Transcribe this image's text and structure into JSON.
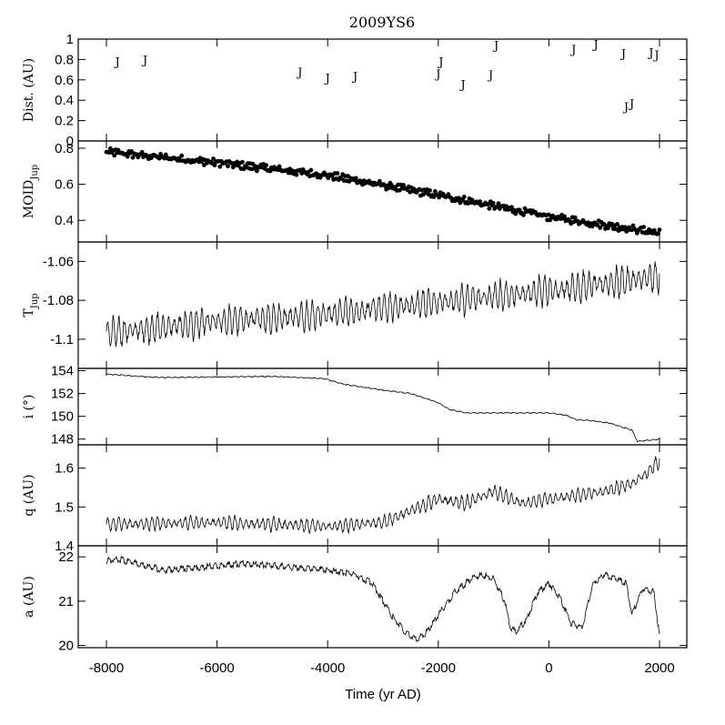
{
  "chart_data": {
    "type": "line",
    "title": "2009YS6",
    "xlabel": "Time (yr AD)",
    "xlim": [
      -8000,
      2000
    ],
    "xticks": [
      -8000,
      -6000,
      -4000,
      -2000,
      0,
      2000
    ],
    "panels": [
      {
        "id": "dist",
        "type": "scatter",
        "ylabel": "Dist. (AU)",
        "ylim": [
          0,
          1
        ],
        "yticks": [
          0,
          0.2,
          0.4,
          0.6,
          0.8,
          1
        ],
        "ytick_labels": [
          "0",
          "0.2",
          "0.4",
          "0.6",
          "0.8",
          "1"
        ],
        "marker_text": "J",
        "points": [
          [
            -7800,
            0.78
          ],
          [
            -7300,
            0.8
          ],
          [
            -4500,
            0.68
          ],
          [
            -4000,
            0.62
          ],
          [
            -3500,
            0.64
          ],
          [
            -2000,
            0.66
          ],
          [
            -1950,
            0.78
          ],
          [
            -1550,
            0.56
          ],
          [
            -1050,
            0.65
          ],
          [
            -950,
            0.94
          ],
          [
            450,
            0.9
          ],
          [
            850,
            0.95
          ],
          [
            1350,
            0.86
          ],
          [
            1400,
            0.34
          ],
          [
            1500,
            0.37
          ],
          [
            1850,
            0.87
          ],
          [
            1950,
            0.85
          ]
        ]
      },
      {
        "id": "moid",
        "type": "scatter",
        "ylabel": "MOID",
        "ylabel_sub": "Jup",
        "ylim": [
          0.28,
          0.84
        ],
        "yticks": [
          0.4,
          0.6,
          0.8
        ],
        "ytick_labels": [
          "0.4",
          "0.6",
          "0.8"
        ],
        "trend": {
          "x": [
            -8000,
            -6000,
            -4000,
            -2000,
            0,
            2000
          ],
          "y": [
            0.78,
            0.72,
            0.65,
            0.54,
            0.42,
            0.33
          ]
        },
        "scatter_amplitude": 0.015,
        "n_points": 420
      },
      {
        "id": "tjup",
        "type": "line",
        "ylabel": "T",
        "ylabel_sub": "Jup",
        "ylim": [
          -1.115,
          -1.05
        ],
        "yticks": [
          -1.1,
          -1.08,
          -1.06
        ],
        "ytick_labels": [
          "-1.1",
          "-1.08",
          "-1.06"
        ],
        "trend": {
          "x": [
            -8000,
            -6000,
            -4000,
            -2000,
            0,
            2000
          ],
          "y": [
            -1.097,
            -1.091,
            -1.087,
            -1.081,
            -1.075,
            -1.068
          ]
        },
        "oscillation_amplitude": 0.008,
        "oscillation_period_yr": 100
      },
      {
        "id": "incl",
        "type": "line",
        "ylabel": "i (°)",
        "ylim": [
          147.5,
          154.2
        ],
        "yticks": [
          148,
          150,
          152,
          154
        ],
        "ytick_labels": [
          "148",
          "150",
          "152",
          "154"
        ],
        "x": [
          -8000,
          -7400,
          -7000,
          -5000,
          -4500,
          -4050,
          -3700,
          -3000,
          -2500,
          -2000,
          -1800,
          -1500,
          -1000,
          -500,
          0,
          300,
          500,
          800,
          1100,
          1300,
          1500,
          1600,
          2000
        ],
        "y": [
          153.7,
          153.5,
          153.4,
          153.5,
          153.4,
          153.3,
          152.8,
          152.3,
          152.0,
          151.2,
          150.6,
          150.3,
          150.3,
          150.3,
          150.3,
          150.1,
          149.7,
          149.6,
          149.4,
          149.1,
          148.8,
          147.8,
          148.0
        ]
      },
      {
        "id": "q",
        "type": "line",
        "ylabel": "q (AU)",
        "ylim": [
          1.4,
          1.66
        ],
        "yticks": [
          1.4,
          1.5,
          1.6
        ],
        "ytick_labels": [
          "1.4",
          "1.5",
          "1.6"
        ],
        "trend": {
          "x": [
            -8000,
            -6000,
            -4000,
            -3000,
            -2500,
            -2000,
            -1500,
            -1000,
            -500,
            0,
            500,
            1000,
            1500,
            1800,
            2000
          ],
          "y": [
            1.455,
            1.46,
            1.45,
            1.46,
            1.49,
            1.52,
            1.51,
            1.54,
            1.51,
            1.52,
            1.53,
            1.54,
            1.56,
            1.59,
            1.62
          ]
        },
        "oscillation_amplitude": 0.018,
        "oscillation_period_yr": 100
      },
      {
        "id": "a",
        "type": "line",
        "ylabel": "a (AU)",
        "ylim": [
          19.95,
          22.25
        ],
        "yticks": [
          20,
          21,
          22
        ],
        "ytick_labels": [
          "20",
          "21",
          "22"
        ],
        "x": [
          -8000,
          -7800,
          -7400,
          -7000,
          -6500,
          -6000,
          -5500,
          -5000,
          -4500,
          -4000,
          -3500,
          -3200,
          -3000,
          -2800,
          -2600,
          -2400,
          -2200,
          -2000,
          -1700,
          -1400,
          -1200,
          -1000,
          -800,
          -700,
          -600,
          -400,
          -200,
          0,
          200,
          400,
          600,
          700,
          800,
          1000,
          1200,
          1400,
          1500,
          1700,
          1900,
          2000
        ],
        "y": [
          21.9,
          21.95,
          21.85,
          21.7,
          21.75,
          21.8,
          21.85,
          21.8,
          21.75,
          21.7,
          21.6,
          21.4,
          21.0,
          20.6,
          20.3,
          20.15,
          20.3,
          20.7,
          21.2,
          21.5,
          21.6,
          21.5,
          21.0,
          20.4,
          20.3,
          20.6,
          21.2,
          21.4,
          21.1,
          20.5,
          20.4,
          20.9,
          21.4,
          21.6,
          21.5,
          21.4,
          20.7,
          21.3,
          21.2,
          20.2
        ]
      }
    ]
  }
}
